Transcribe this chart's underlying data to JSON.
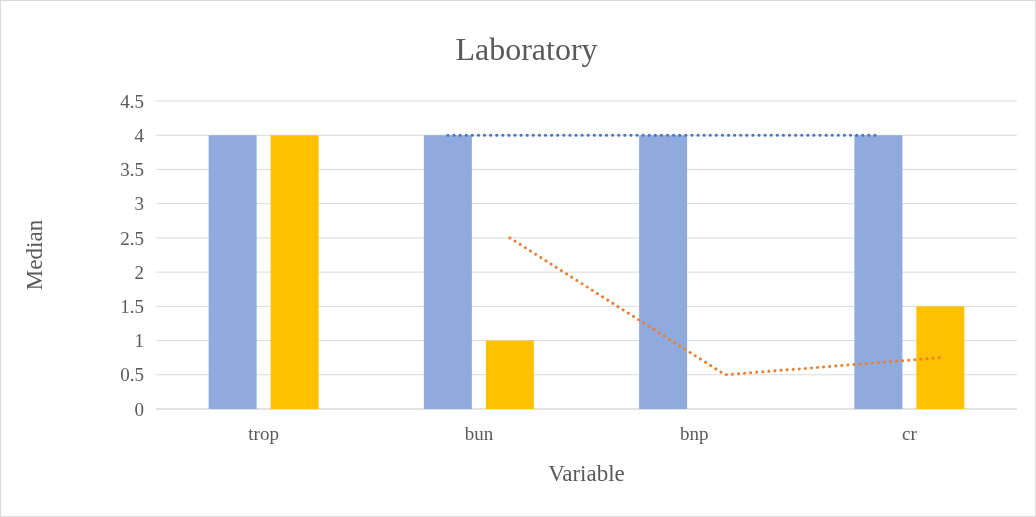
{
  "chart_data": {
    "type": "bar",
    "title": "Laboratory",
    "xlabel": "Variable",
    "ylabel": "Median",
    "categories": [
      "trop",
      "bun",
      "bnp",
      "cr"
    ],
    "series": [
      {
        "color": "#8faadc",
        "values": [
          4,
          4,
          4,
          4
        ]
      },
      {
        "color": "#ffc000",
        "values": [
          4,
          1,
          null,
          1.5
        ]
      },
      {
        "type": "line",
        "color": "#4472c4",
        "x": [
          "bun",
          "bnp",
          "cr"
        ],
        "values": [
          4,
          4,
          4
        ]
      },
      {
        "type": "line",
        "color": "#ed7d31",
        "x": [
          "bun",
          "bnp",
          "cr"
        ],
        "values": [
          2.5,
          0.5,
          0.75
        ]
      }
    ],
    "ylim": [
      0,
      4.5
    ],
    "yticks": [
      0,
      0.5,
      1,
      1.5,
      2,
      2.5,
      3,
      3.5,
      4,
      4.5
    ],
    "grid": "y",
    "line_style": "dotted"
  }
}
